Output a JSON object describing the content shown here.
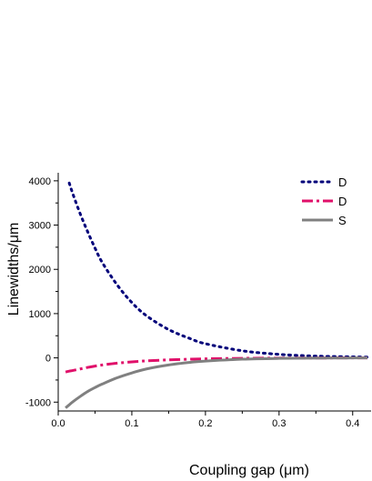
{
  "chart_data": {
    "type": "line",
    "xlabel": "Coupling gap (μm)",
    "ylabel": "Linewidths/μm",
    "xlim": [
      0.0,
      0.425
    ],
    "ylim": [
      -1200,
      4100
    ],
    "xticks": [
      0.0,
      0.1,
      0.2,
      0.3,
      0.4
    ],
    "xtick_labels": [
      "0.0",
      "0.1",
      "0.2",
      "0.3",
      "0.4"
    ],
    "yticks": [
      -1000,
      0,
      1000,
      2000,
      3000,
      4000
    ],
    "ytick_labels": [
      "-1000",
      "0",
      "1000",
      "2000",
      "3000",
      "4000"
    ],
    "grid": false,
    "legend_position": "top-right",
    "x": [
      0.01,
      0.015,
      0.02,
      0.03,
      0.04,
      0.05,
      0.06,
      0.08,
      0.1,
      0.12,
      0.15,
      0.18,
      0.2,
      0.25,
      0.3,
      0.35,
      0.4,
      0.42
    ],
    "series": [
      {
        "name": "D",
        "color": "#00007a",
        "dash": "dot",
        "values": [
          null,
          3950,
          3700,
          3250,
          2850,
          2480,
          2150,
          1650,
          1250,
          950,
          640,
          430,
          320,
          160,
          80,
          40,
          22,
          18
        ]
      },
      {
        "name": "D",
        "color": "#e0106a",
        "dash": "dashdot",
        "values": [
          -320,
          -300,
          -285,
          -250,
          -215,
          -185,
          -160,
          -120,
          -90,
          -68,
          -45,
          -30,
          -22,
          -10,
          -5,
          -3,
          -1,
          -1
        ]
      },
      {
        "name": "S",
        "color": "#808080",
        "dash": "solid",
        "values": [
          -1130,
          -1060,
          -990,
          -870,
          -760,
          -670,
          -590,
          -450,
          -340,
          -250,
          -160,
          -100,
          -72,
          -30,
          -12,
          -5,
          -2,
          -1
        ]
      }
    ]
  }
}
